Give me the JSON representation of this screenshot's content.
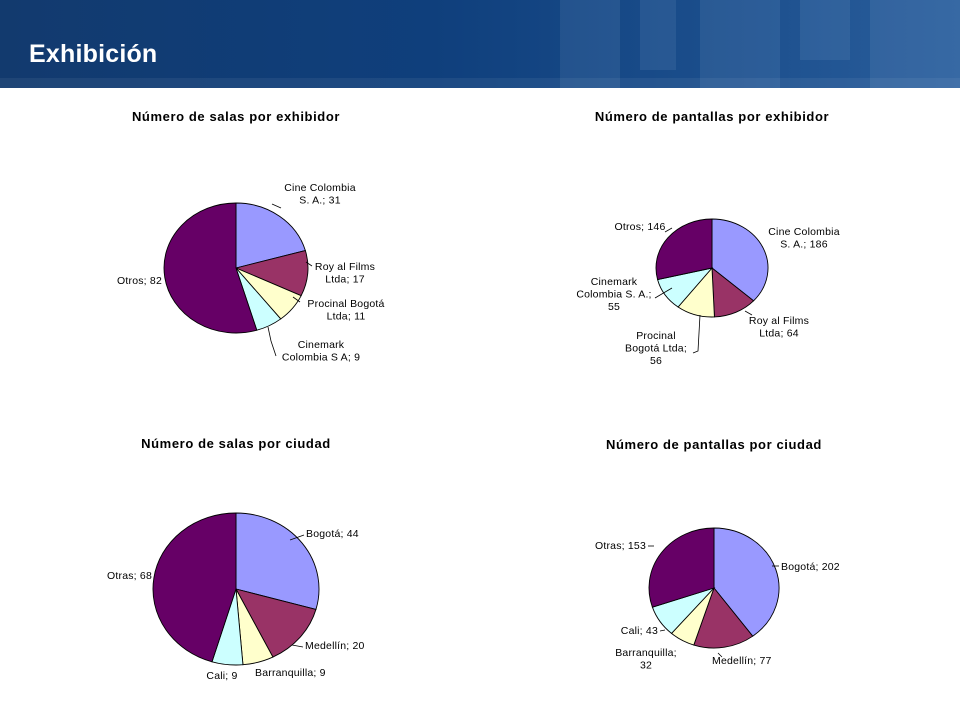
{
  "page": {
    "title": "Exhibición"
  },
  "colors": [
    "#9999ff",
    "#993366",
    "#ffffcc",
    "#ccffff",
    "#660066"
  ],
  "chart_data": [
    {
      "type": "pie",
      "title": "Número de salas por exhibidor",
      "categories": [
        "Cine Colombia S. A.",
        "Roy al Films Ltda",
        "Procinal Bogotá Ltda",
        "Cinemark Colombia S A",
        "Otros"
      ],
      "values": [
        31,
        17,
        11,
        9,
        82
      ],
      "labels": [
        [
          "Cine Colombia",
          "S. A.; 31"
        ],
        [
          "Roy al Films",
          "Ltda; 17"
        ],
        [
          "Procinal Bogotá",
          "Ltda; 11"
        ],
        [
          "Cinemark",
          "Colombia S A; 9"
        ],
        [
          "Otros; 82"
        ]
      ]
    },
    {
      "type": "pie",
      "title": "Número de pantallas por exhibidor",
      "categories": [
        "Cine Colombia S. A.",
        "Roy al Films Ltda",
        "Procinal Bogotá Ltda",
        "Cinemark Colombia S. A.",
        "Otros"
      ],
      "values": [
        186,
        64,
        56,
        55,
        146
      ],
      "labels": [
        [
          "Cine Colombia",
          "S. A.; 186"
        ],
        [
          "Roy al Films",
          "Ltda; 64"
        ],
        [
          "Procinal",
          "Bogotá Ltda;",
          "56"
        ],
        [
          "Cinemark",
          "Colombia S. A.;",
          "55"
        ],
        [
          "Otros; 146"
        ]
      ]
    },
    {
      "type": "pie",
      "title": "Número de salas por ciudad",
      "categories": [
        "Bogotá",
        "Medellín",
        "Barranquilla",
        "Cali",
        "Otras"
      ],
      "values": [
        44,
        20,
        9,
        9,
        68
      ],
      "labels": [
        [
          "Bogotá; 44"
        ],
        [
          "Medellín; 20"
        ],
        [
          "Barranquilla; 9"
        ],
        [
          "Cali; 9"
        ],
        [
          "Otras; 68"
        ]
      ]
    },
    {
      "type": "pie",
      "title": "Número de pantallas por ciudad",
      "categories": [
        "Bogotá",
        "Medellín",
        "Barranquilla",
        "Cali",
        "Otras"
      ],
      "values": [
        202,
        77,
        32,
        43,
        153
      ],
      "labels": [
        [
          "Bogotá; 202"
        ],
        [
          "Medellín; 77"
        ],
        [
          "Barranquilla;",
          "32"
        ],
        [
          "Cali; 43"
        ],
        [
          "Otras; 153"
        ]
      ]
    }
  ]
}
